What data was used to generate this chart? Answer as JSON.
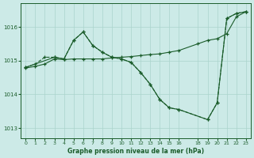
{
  "background_color": "#cceae7",
  "grid_color": "#aad4cc",
  "line_color": "#1a5c2a",
  "title": "Graphe pression niveau de la mer (hPa)",
  "xlim": [
    -0.5,
    23.5
  ],
  "ylim": [
    1012.7,
    1016.7
  ],
  "yticks": [
    1013,
    1014,
    1015,
    1016
  ],
  "xticks": [
    0,
    1,
    2,
    3,
    4,
    5,
    6,
    7,
    8,
    9,
    10,
    11,
    12,
    13,
    14,
    15,
    16,
    18,
    19,
    20,
    21,
    22,
    23
  ],
  "series1_x": [
    0,
    1,
    2,
    3,
    4,
    5,
    6,
    7,
    8,
    9,
    10,
    11,
    12,
    13,
    14,
    15,
    16,
    19,
    20,
    21,
    22,
    23
  ],
  "series1_y": [
    1014.8,
    1014.9,
    1015.1,
    1015.1,
    1015.05,
    1015.6,
    1015.85,
    1015.45,
    1015.25,
    1015.1,
    1015.05,
    1014.95,
    1014.65,
    1014.3,
    1013.85,
    1013.6,
    1013.55,
    1013.25,
    1013.75,
    1016.25,
    1016.4,
    1016.45
  ],
  "series2_x": [
    0,
    1,
    2,
    3,
    4,
    5,
    6,
    7,
    8,
    9,
    10,
    11,
    12,
    13,
    14,
    15,
    16,
    18,
    19,
    20,
    21,
    22,
    23
  ],
  "series2_y": [
    1014.78,
    1014.83,
    1014.9,
    1015.05,
    1015.03,
    1015.05,
    1015.05,
    1015.05,
    1015.05,
    1015.08,
    1015.1,
    1015.12,
    1015.15,
    1015.18,
    1015.2,
    1015.25,
    1015.3,
    1015.5,
    1015.6,
    1015.65,
    1015.8,
    1016.3,
    1016.45
  ],
  "series3_x": [
    0,
    3,
    4,
    5,
    6,
    7,
    8,
    9,
    10,
    11,
    12,
    13,
    14,
    15,
    16,
    19,
    20,
    21,
    22,
    23
  ],
  "series3_y": [
    1014.8,
    1015.1,
    1015.05,
    1015.6,
    1015.85,
    1015.45,
    1015.25,
    1015.1,
    1015.05,
    1014.95,
    1014.65,
    1014.3,
    1013.85,
    1013.6,
    1013.55,
    1013.25,
    1013.75,
    1016.25,
    1016.4,
    1016.45
  ]
}
